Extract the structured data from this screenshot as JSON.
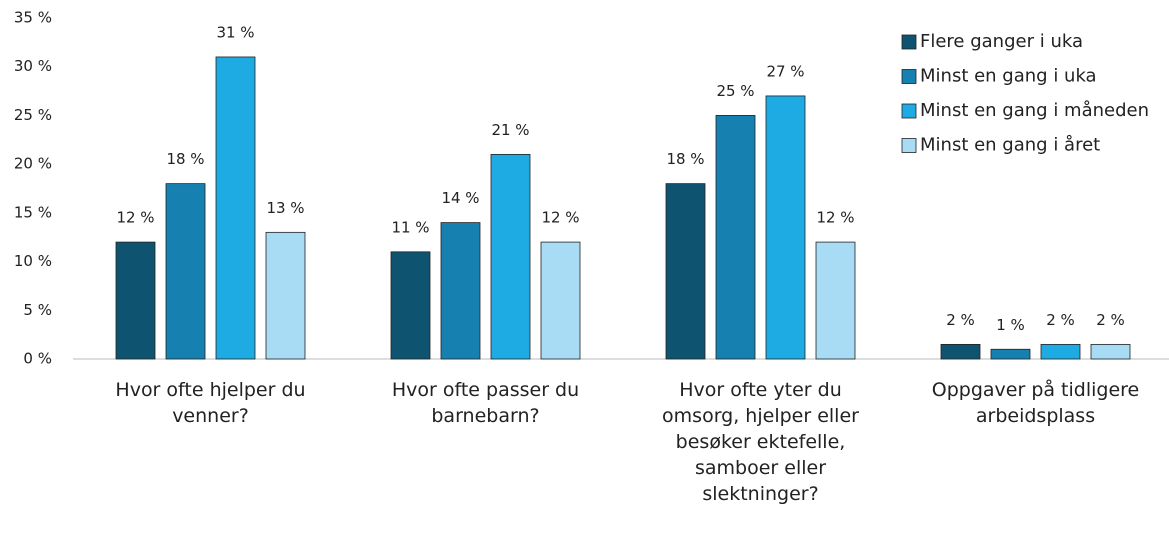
{
  "chart_data": {
    "type": "bar",
    "categories": [
      "Hvor ofte hjelper du venner?",
      "Hvor ofte passer du barnebarn?",
      "Hvor ofte yter du omsorg, hjelper eller besøker ektefelle, samboer eller slektninger?",
      "Oppgaver på tidligere arbeidsplass"
    ],
    "series": [
      {
        "name": "Flere ganger i uka",
        "color": "#0e5470",
        "values": [
          12,
          11,
          18,
          1.5
        ],
        "value_labels": [
          "12 %",
          "11 %",
          "18 %",
          "2 %"
        ]
      },
      {
        "name": "Minst en gang i uka",
        "color": "#1681b0",
        "values": [
          18,
          14,
          25,
          1
        ],
        "value_labels": [
          "18 %",
          "14 %",
          "25 %",
          "1 %"
        ]
      },
      {
        "name": "Minst en gang i måneden",
        "color": "#1eaae2",
        "values": [
          31,
          21,
          27,
          1.5
        ],
        "value_labels": [
          "31 %",
          "21 %",
          "27 %",
          "2 %"
        ]
      },
      {
        "name": "Minst en gang i året",
        "color": "#a8dcf4",
        "values": [
          13,
          12,
          12,
          1.5
        ],
        "value_labels": [
          "13 %",
          "12 %",
          "12 %",
          "2 %"
        ]
      }
    ],
    "ylim": [
      0,
      35
    ],
    "yticks": [
      {
        "value": 0,
        "label": "0 %"
      },
      {
        "value": 5,
        "label": "5 %"
      },
      {
        "value": 10,
        "label": "10 %"
      },
      {
        "value": 15,
        "label": "15 %"
      },
      {
        "value": 20,
        "label": "20 %"
      },
      {
        "value": 25,
        "label": "25 %"
      },
      {
        "value": 30,
        "label": "30 %"
      },
      {
        "value": 35,
        "label": "35 %"
      }
    ],
    "legend": "top-right"
  }
}
